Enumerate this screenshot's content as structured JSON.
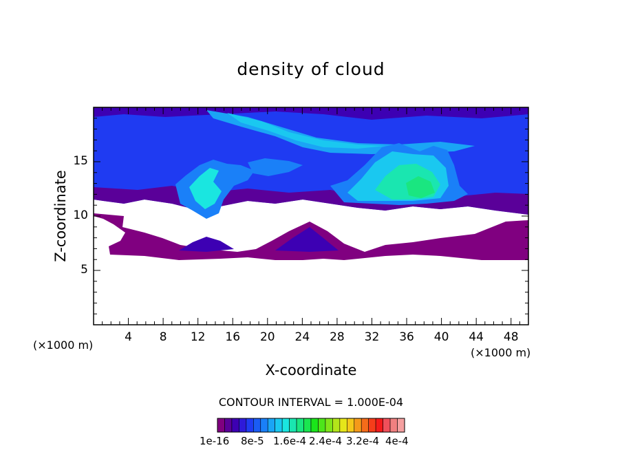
{
  "chart_data": {
    "type": "heatmap",
    "title": "density of cloud",
    "xlabel": "X-coordinate",
    "ylabel": "Z-coordinate",
    "x_unit": "(×1000 m)",
    "y_unit": "(×1000 m)",
    "xlim": [
      0,
      50
    ],
    "ylim": [
      0,
      20
    ],
    "x_ticks": [
      4,
      8,
      12,
      16,
      20,
      24,
      28,
      32,
      36,
      40,
      44,
      48
    ],
    "x_tick_labels": [
      "4",
      "8",
      "12",
      "16",
      "20",
      "24",
      "28",
      "32",
      "36",
      "40",
      "44",
      "48"
    ],
    "y_ticks": [
      5,
      10,
      15
    ],
    "y_tick_labels": [
      "5",
      "10",
      "15"
    ],
    "contour_interval_text": "CONTOUR INTERVAL = 1.000E-04",
    "colorbar": {
      "range": [
        1e-16,
        0.0004
      ],
      "labels": [
        "1e-16",
        "8e-5",
        "1.6e-4",
        "2.4e-4",
        "3.2e-4",
        "4e-4"
      ],
      "colors": [
        "#800080",
        "#5a0099",
        "#3d00b3",
        "#2e1ad9",
        "#1f3bf2",
        "#1a5cf5",
        "#1a80f8",
        "#1aa5f5",
        "#1ac8f0",
        "#1ae6e0",
        "#1ae6b0",
        "#1ae680",
        "#1ae650",
        "#1ae61a",
        "#4de61a",
        "#80e61a",
        "#b3e61a",
        "#e6e61a",
        "#f5c81a",
        "#f59a1a",
        "#f56c1a",
        "#f53d1a",
        "#f51a1a",
        "#f0505a",
        "#f08080",
        "#f5a0a0"
      ]
    }
  }
}
